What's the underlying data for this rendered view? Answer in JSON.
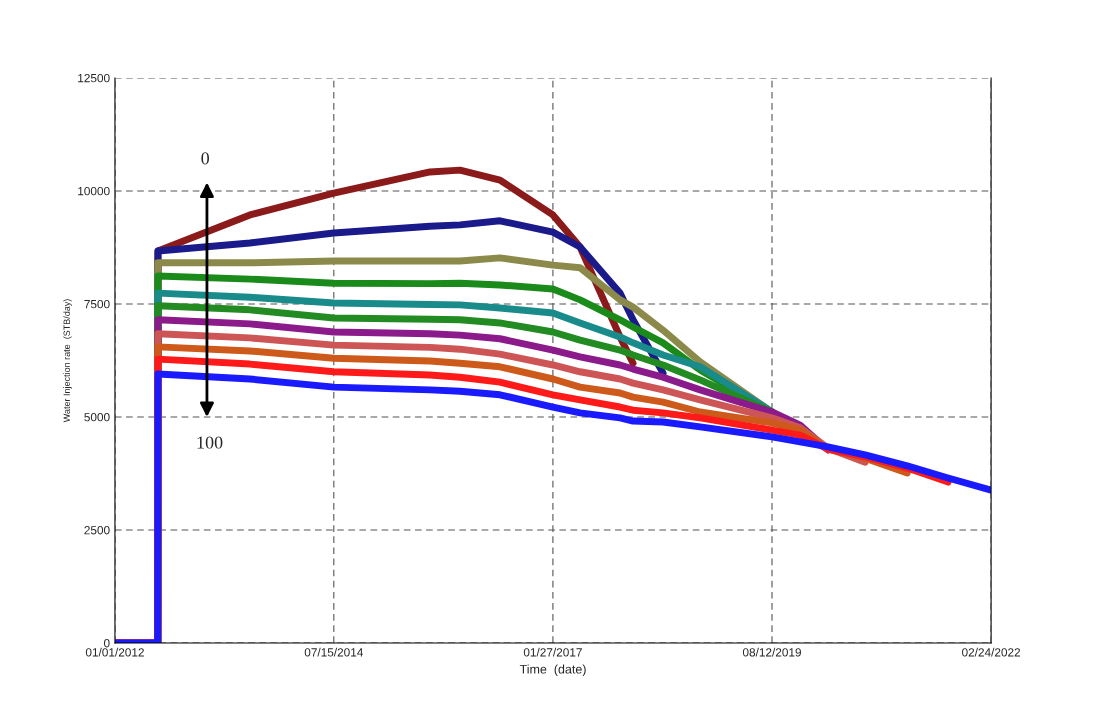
{
  "chart_data": {
    "type": "line",
    "xlabel": "Time  (date)",
    "ylabel": "Water Injection rate  (STB/day)",
    "x": [
      "2012-01-01",
      "2012-06-30",
      "2012-07-01",
      "2013-07-25",
      "2014-07-15",
      "2015-08-26",
      "2015-12-31",
      "2016-06-17",
      "2017-01-27",
      "2017-05-22",
      "2017-11-07",
      "2018-01-01",
      "2018-05-08",
      "2018-10-12",
      "2019-08-12",
      "2019-12-09",
      "2020-04-05",
      "2020-09-09",
      "2021-03-06",
      "2021-08-26",
      "2022-02-24"
    ],
    "series": [
      {
        "color": "#8b1a1a",
        "values": [
          0,
          0,
          8670,
          9470,
          9950,
          10420,
          10460,
          10240,
          9470,
          8760,
          6770,
          6190,
          null,
          null,
          null,
          null,
          null,
          null,
          null,
          null,
          null
        ]
      },
      {
        "color": "#1a1a8b",
        "values": [
          0,
          0,
          8670,
          8850,
          9070,
          9220,
          9250,
          9340,
          9090,
          8760,
          7740,
          7150,
          5970,
          null,
          null,
          null,
          null,
          null,
          null,
          null,
          null
        ]
      },
      {
        "color": "#8b8a4a",
        "values": [
          0,
          0,
          8410,
          8410,
          8450,
          8450,
          8450,
          8520,
          8360,
          8300,
          7590,
          7430,
          6920,
          6220,
          5110,
          null,
          null,
          null,
          null,
          null,
          null
        ]
      },
      {
        "color": "#1a8b1a",
        "values": [
          0,
          0,
          8120,
          8050,
          7960,
          7950,
          7960,
          7920,
          7830,
          7590,
          7150,
          6990,
          6640,
          6040,
          5110,
          null,
          null,
          null,
          null,
          null,
          null
        ]
      },
      {
        "color": "#1a8b8b",
        "values": [
          0,
          0,
          7740,
          7650,
          7520,
          7490,
          7480,
          7410,
          7300,
          7080,
          6770,
          6640,
          6370,
          6110,
          5110,
          null,
          null,
          null,
          null,
          null,
          null
        ]
      },
      {
        "color": "#228b22",
        "values": [
          0,
          0,
          7460,
          7370,
          7190,
          7160,
          7150,
          7080,
          6880,
          6700,
          6480,
          6370,
          6150,
          5820,
          5110,
          null,
          null,
          null,
          null,
          null,
          null
        ]
      },
      {
        "color": "#8b1a8b",
        "values": [
          0,
          0,
          7150,
          7060,
          6880,
          6840,
          6810,
          6730,
          6480,
          6330,
          6150,
          6060,
          5880,
          5600,
          5110,
          4820,
          4270,
          null,
          null,
          null,
          null
        ]
      },
      {
        "color": "#cd5555",
        "values": [
          0,
          0,
          6840,
          6750,
          6590,
          6540,
          6500,
          6390,
          6150,
          6000,
          5840,
          5750,
          5600,
          5380,
          4980,
          4760,
          4310,
          4000,
          null,
          null,
          null
        ]
      },
      {
        "color": "#cd5a1a",
        "values": [
          0,
          0,
          6550,
          6460,
          6300,
          6240,
          6190,
          6110,
          5840,
          5660,
          5530,
          5440,
          5330,
          5110,
          4870,
          4710,
          4290,
          4090,
          3760,
          null,
          null
        ]
      },
      {
        "color": "#ff1a1a",
        "values": [
          0,
          0,
          6280,
          6170,
          6000,
          5930,
          5880,
          5770,
          5490,
          5380,
          5220,
          5150,
          5090,
          4980,
          4710,
          4600,
          4290,
          4120,
          3870,
          3560,
          null
        ]
      },
      {
        "color": "#1a1aff",
        "values": [
          0,
          0,
          5950,
          5840,
          5660,
          5600,
          5570,
          5490,
          5220,
          5090,
          4980,
          4910,
          4890,
          4780,
          4560,
          4450,
          4340,
          4160,
          3920,
          3650,
          3380
        ]
      }
    ],
    "xlim": [
      "2012-01-01",
      "2022-02-24"
    ],
    "xticks": [
      {
        "value": "2012-01-01",
        "label": "01/01/2012"
      },
      {
        "value": "2014-07-15",
        "label": "07/15/2014"
      },
      {
        "value": "2017-01-27",
        "label": "01/27/2017"
      },
      {
        "value": "2019-08-12",
        "label": "08/12/2019"
      },
      {
        "value": "2022-02-24",
        "label": "02/24/2022"
      }
    ],
    "ylim": [
      0,
      12500
    ],
    "yticks": [
      0,
      2500,
      5000,
      7500,
      10000,
      12500
    ],
    "grid": true,
    "annotations": [
      "0",
      "100"
    ]
  }
}
